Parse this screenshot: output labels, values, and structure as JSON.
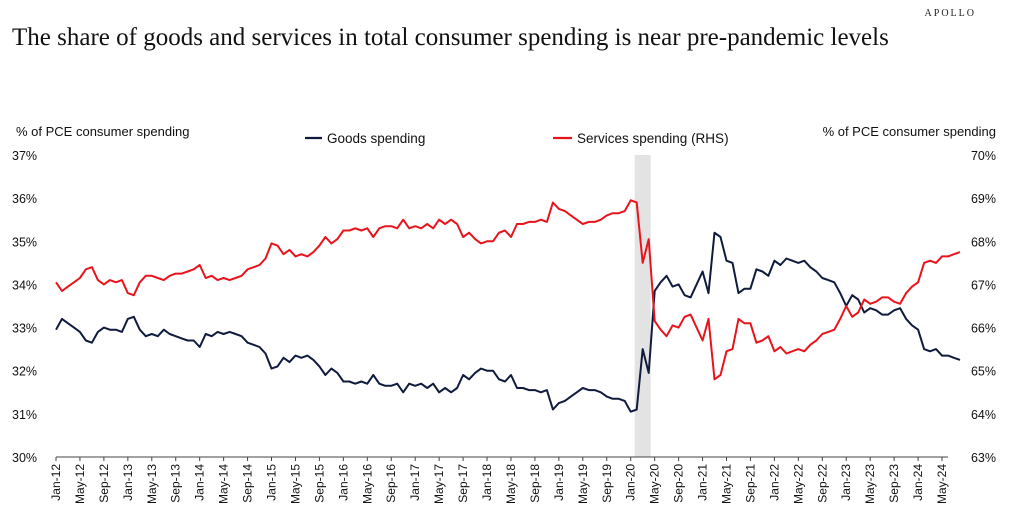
{
  "brand": "APOLLO",
  "chart_data": {
    "type": "line",
    "title": "The share of goods and services in total consumer spending is near pre-pandemic levels",
    "ylabel_left": "% of PCE consumer spending",
    "ylabel_right": "% of PCE consumer spending",
    "ylim_left": [
      30,
      37
    ],
    "ylim_right": [
      63,
      70
    ],
    "yticks_left": [
      "30%",
      "31%",
      "32%",
      "33%",
      "34%",
      "35%",
      "36%",
      "37%"
    ],
    "yticks_right": [
      "63%",
      "64%",
      "65%",
      "66%",
      "67%",
      "68%",
      "69%",
      "70%"
    ],
    "x_start": "2012-01",
    "x_end": "2024-06",
    "xtick_labels": [
      "Jan-12",
      "May-12",
      "Sep-12",
      "Jan-13",
      "May-13",
      "Sep-13",
      "Jan-14",
      "May-14",
      "Sep-14",
      "Jan-15",
      "May-15",
      "Sep-15",
      "Jan-16",
      "May-16",
      "Sep-16",
      "Jan-17",
      "May-17",
      "Sep-17",
      "Jan-18",
      "May-18",
      "Sep-18",
      "Jan-19",
      "May-19",
      "Sep-19",
      "Jan-20",
      "May-20",
      "Sep-20",
      "Jan-21",
      "May-21",
      "Sep-21",
      "Jan-22",
      "May-22",
      "Sep-22",
      "Jan-23",
      "May-23",
      "Sep-23",
      "Jan-24",
      "May-24"
    ],
    "shaded_region": [
      "2020-02",
      "2020-04"
    ],
    "legend_placement": "top-center",
    "grid": false,
    "series": [
      {
        "name": "Goods spending",
        "axis": "left",
        "color": "#0f1b3d",
        "values": [
          32.95,
          33.2,
          33.1,
          33.0,
          32.9,
          32.7,
          32.65,
          32.9,
          33.0,
          32.95,
          32.95,
          32.9,
          33.2,
          33.25,
          32.95,
          32.8,
          32.85,
          32.8,
          32.95,
          32.85,
          32.8,
          32.75,
          32.7,
          32.7,
          32.55,
          32.85,
          32.8,
          32.9,
          32.85,
          32.9,
          32.85,
          32.8,
          32.65,
          32.6,
          32.55,
          32.4,
          32.05,
          32.1,
          32.3,
          32.2,
          32.35,
          32.3,
          32.35,
          32.25,
          32.1,
          31.9,
          32.05,
          31.95,
          31.75,
          31.75,
          31.7,
          31.75,
          31.7,
          31.9,
          31.7,
          31.65,
          31.65,
          31.7,
          31.5,
          31.7,
          31.65,
          31.7,
          31.6,
          31.7,
          31.5,
          31.6,
          31.5,
          31.6,
          31.9,
          31.8,
          31.95,
          32.05,
          32.0,
          32.0,
          31.8,
          31.75,
          31.9,
          31.6,
          31.6,
          31.55,
          31.55,
          31.5,
          31.55,
          31.1,
          31.25,
          31.3,
          31.4,
          31.5,
          31.6,
          31.55,
          31.55,
          31.5,
          31.4,
          31.35,
          31.35,
          31.3,
          31.05,
          31.1,
          32.5,
          31.95,
          33.85,
          34.05,
          34.2,
          33.95,
          34.0,
          33.75,
          33.7,
          34.0,
          34.3,
          33.8,
          35.2,
          35.1,
          34.55,
          34.5,
          33.8,
          33.9,
          33.9,
          34.35,
          34.3,
          34.2,
          34.55,
          34.45,
          34.6,
          34.55,
          34.5,
          34.55,
          34.4,
          34.3,
          34.15,
          34.1,
          34.05,
          33.8,
          33.5,
          33.75,
          33.65,
          33.35,
          33.45,
          33.4,
          33.3,
          33.3,
          33.4,
          33.45,
          33.2,
          33.05,
          32.95,
          32.5,
          32.45,
          32.5,
          32.35,
          32.35,
          32.3,
          32.25
        ]
      },
      {
        "name": "Services spending (RHS)",
        "axis": "right",
        "color": "#e8141c",
        "values": [
          67.05,
          66.85,
          66.95,
          67.05,
          67.15,
          67.35,
          67.4,
          67.1,
          67.0,
          67.1,
          67.05,
          67.1,
          66.8,
          66.75,
          67.05,
          67.2,
          67.2,
          67.15,
          67.1,
          67.2,
          67.25,
          67.25,
          67.3,
          67.35,
          67.45,
          67.15,
          67.2,
          67.1,
          67.15,
          67.1,
          67.15,
          67.2,
          67.35,
          67.4,
          67.45,
          67.6,
          67.95,
          67.9,
          67.7,
          67.8,
          67.65,
          67.7,
          67.65,
          67.75,
          67.9,
          68.1,
          67.95,
          68.05,
          68.25,
          68.25,
          68.3,
          68.25,
          68.3,
          68.1,
          68.3,
          68.35,
          68.35,
          68.3,
          68.5,
          68.3,
          68.35,
          68.3,
          68.4,
          68.3,
          68.5,
          68.4,
          68.5,
          68.4,
          68.1,
          68.2,
          68.05,
          67.95,
          68.0,
          68.0,
          68.2,
          68.25,
          68.1,
          68.4,
          68.4,
          68.45,
          68.45,
          68.5,
          68.45,
          68.9,
          68.75,
          68.7,
          68.6,
          68.5,
          68.4,
          68.45,
          68.45,
          68.5,
          68.6,
          68.65,
          68.65,
          68.7,
          68.95,
          68.9,
          67.5,
          68.05,
          66.15,
          65.95,
          65.8,
          66.05,
          66.0,
          66.25,
          66.3,
          66.0,
          65.7,
          66.2,
          64.8,
          64.9,
          65.45,
          65.5,
          66.2,
          66.1,
          66.1,
          65.65,
          65.7,
          65.8,
          65.45,
          65.55,
          65.4,
          65.45,
          65.5,
          65.45,
          65.6,
          65.7,
          65.85,
          65.9,
          65.95,
          66.2,
          66.5,
          66.25,
          66.35,
          66.65,
          66.55,
          66.6,
          66.7,
          66.7,
          66.6,
          66.55,
          66.8,
          66.95,
          67.05,
          67.5,
          67.55,
          67.5,
          67.65,
          67.65,
          67.7,
          67.75
        ]
      }
    ]
  }
}
